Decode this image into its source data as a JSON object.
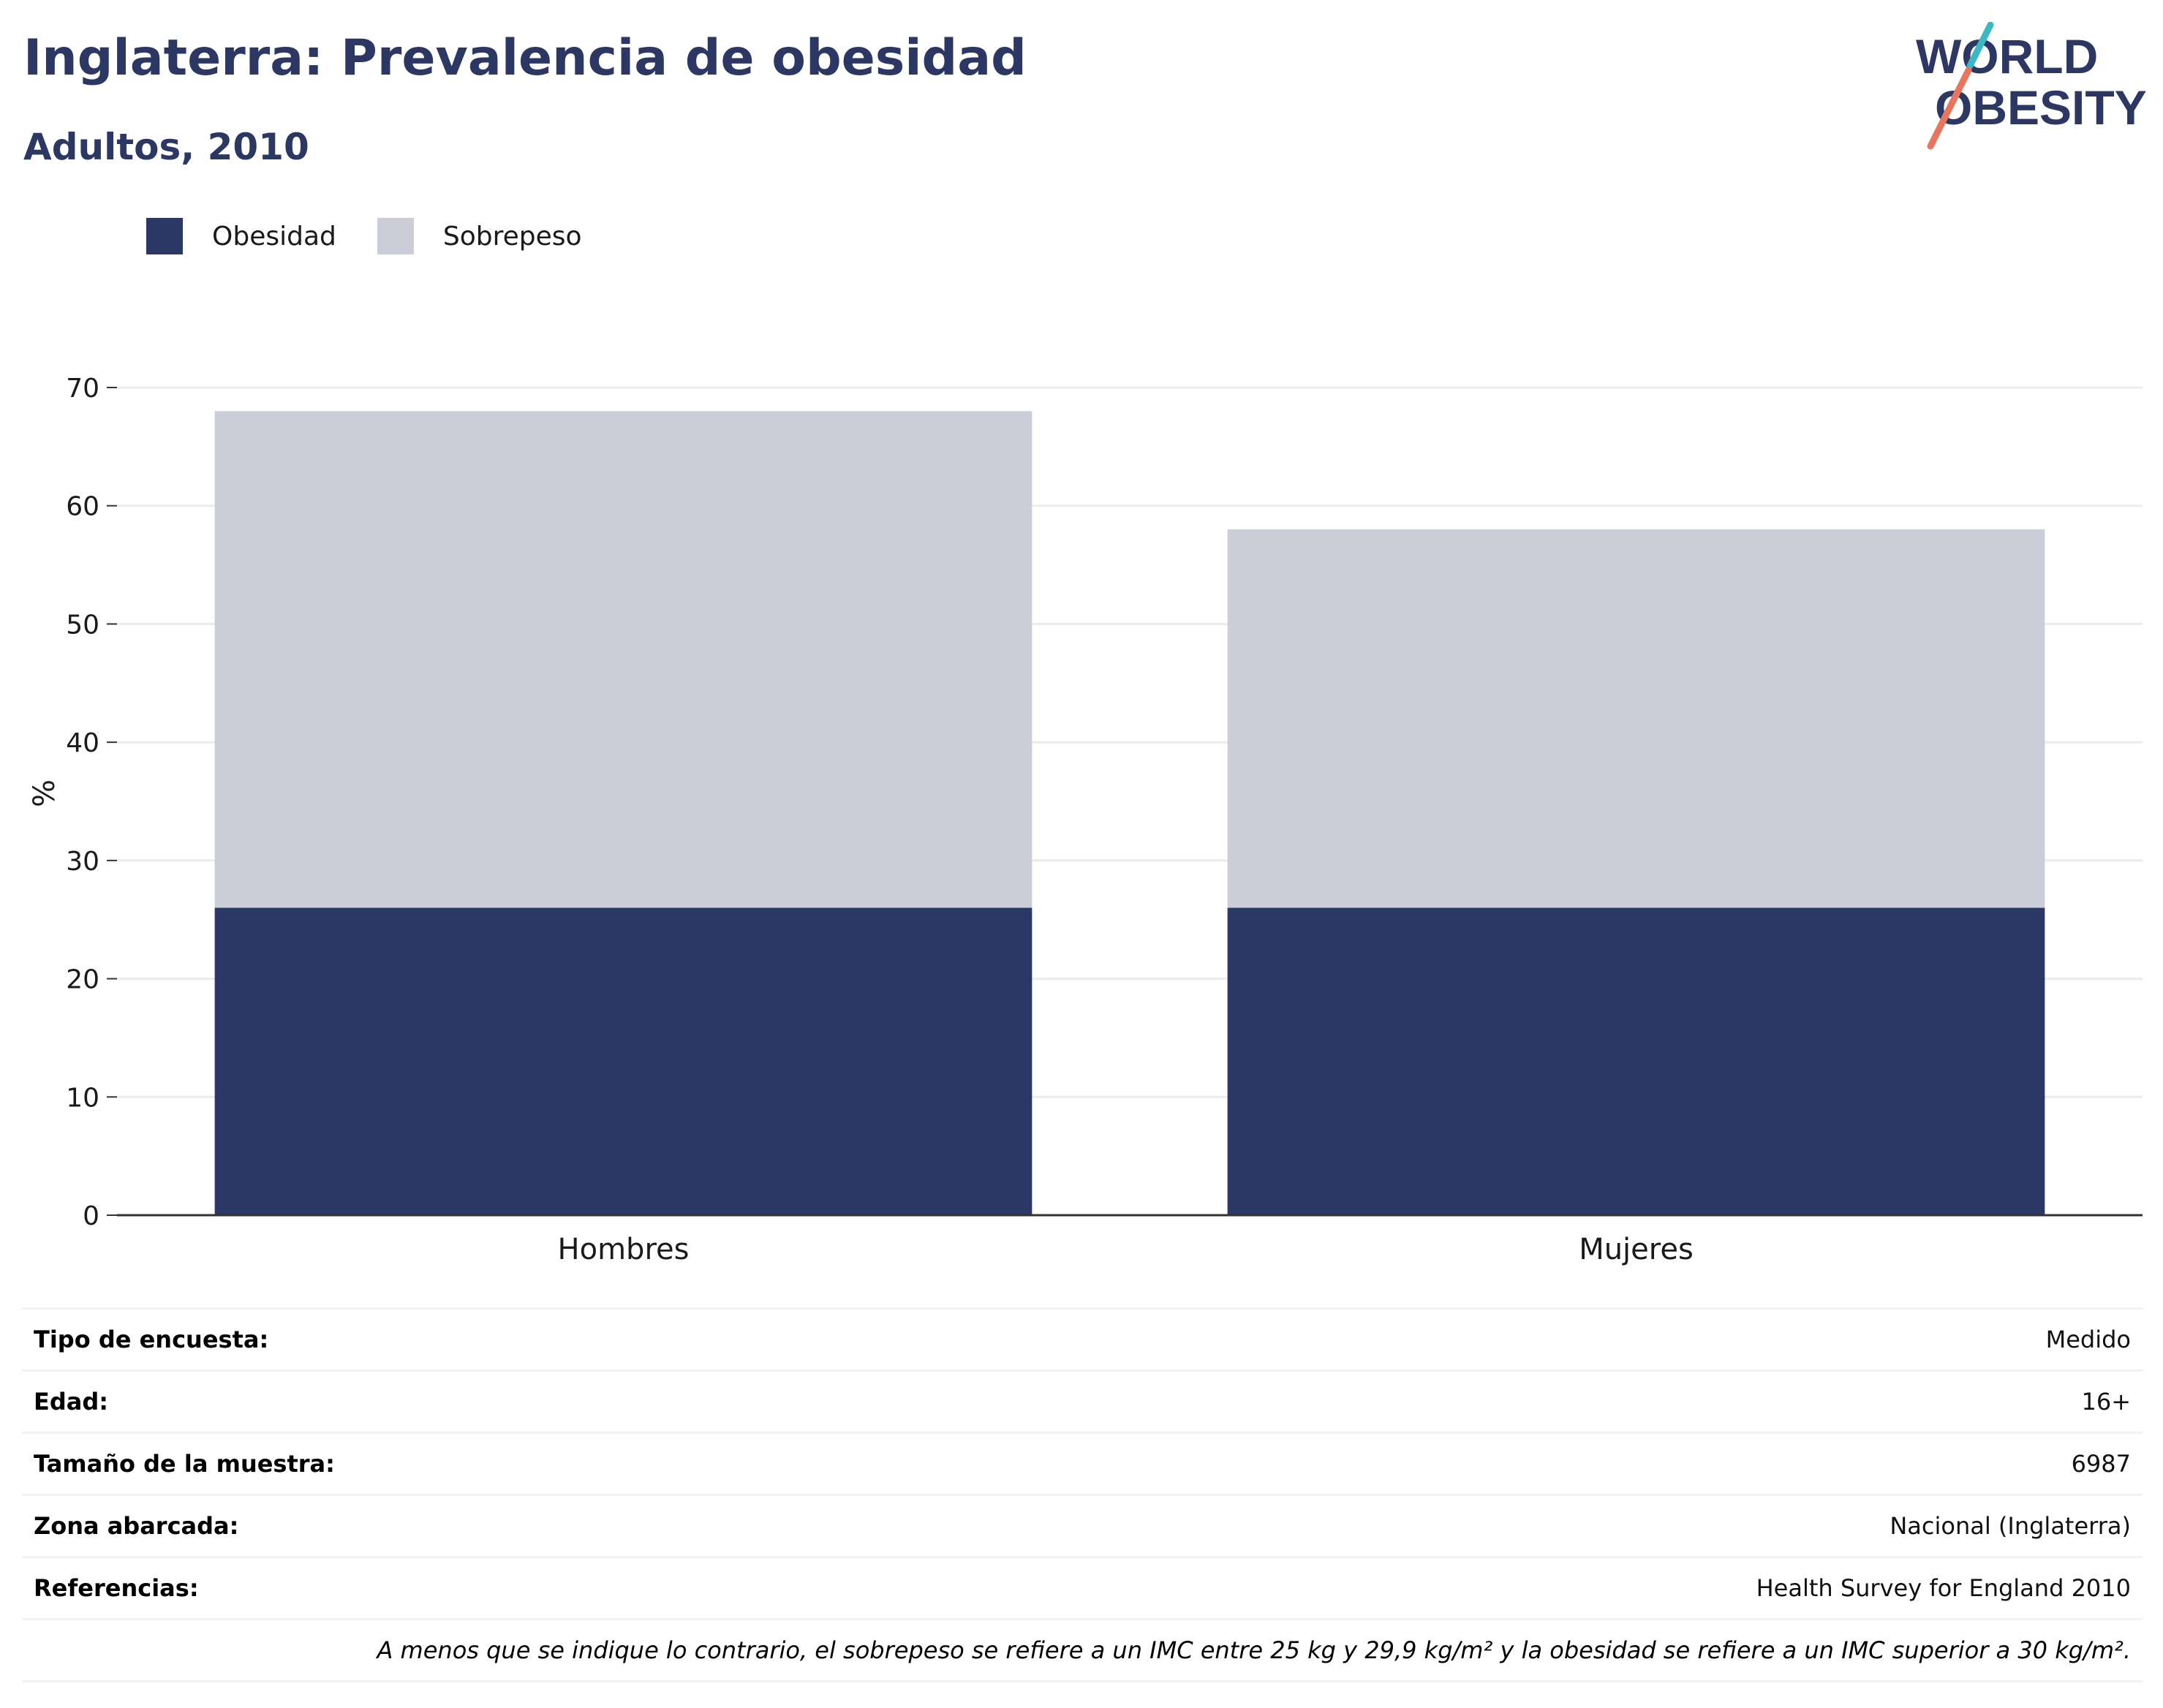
{
  "title": "Inglaterra: Prevalencia de obesidad",
  "subtitle": "Adultos, 2010",
  "logo": {
    "line1": "WORLD",
    "line2": "OBESITY"
  },
  "colors": {
    "obesity": "#2b3764",
    "overweight": "#cbcdd8",
    "title": "#2c3863",
    "logo_teal": "#3bb8c3",
    "logo_coral": "#e8765f"
  },
  "chart_data": {
    "type": "bar",
    "stacked": true,
    "categories": [
      "Hombres",
      "Mujeres"
    ],
    "series": [
      {
        "name": "Obesidad",
        "values": [
          26,
          26
        ]
      },
      {
        "name": "Sobrepeso",
        "values": [
          42,
          32
        ]
      }
    ],
    "ylabel": "%",
    "ylim": [
      0,
      70
    ],
    "yticks": [
      0,
      10,
      20,
      30,
      40,
      50,
      60,
      70
    ],
    "grid": true,
    "legend_position": "top-left"
  },
  "info": {
    "rows": [
      {
        "label": "Tipo de encuesta:",
        "value": "Medido"
      },
      {
        "label": "Edad:",
        "value": "16+"
      },
      {
        "label": "Tamaño de la muestra:",
        "value": "6987"
      },
      {
        "label": "Zona abarcada:",
        "value": "Nacional (Inglaterra)"
      },
      {
        "label": "Referencias:",
        "value": "Health Survey for England 2010"
      }
    ],
    "note": "A menos que se indique lo contrario, el sobrepeso se refiere a un IMC entre 25 kg y 29,9 kg/m² y la obesidad se refiere a un IMC superior a 30 kg/m²."
  }
}
